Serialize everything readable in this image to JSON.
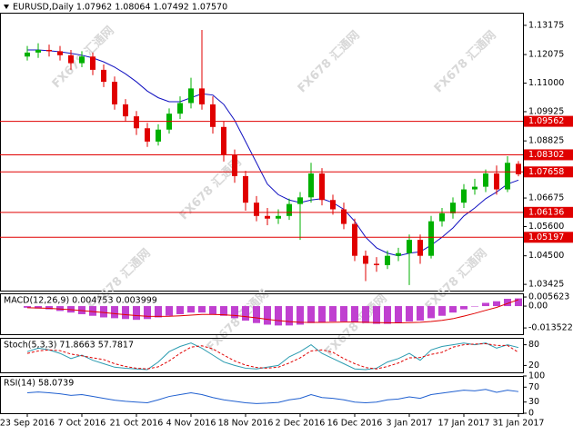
{
  "chart_data": [
    {
      "type": "candlestick",
      "title": "EURUSD,Daily  1.07962 1.08064 1.07492 1.07570",
      "watermark": "FX678 汇通网",
      "categories": [
        "23 Sep 2016",
        null,
        null,
        null,
        null,
        "7 Oct 2016",
        null,
        null,
        null,
        null,
        "21 Oct 2016",
        null,
        null,
        null,
        null,
        "4 Nov 2016",
        null,
        null,
        null,
        null,
        "18 Nov 2016",
        null,
        null,
        null,
        null,
        "2 Dec 2016",
        null,
        null,
        null,
        null,
        "16 Dec 2016",
        null,
        null,
        null,
        null,
        "3 Jan 2017",
        null,
        null,
        null,
        null,
        "17 Jan 2017",
        null,
        null,
        null,
        null,
        "31 Jan 2017"
      ],
      "up_color": "#00b000",
      "down_color": "#e00000",
      "candles": [
        {
          "o": 1.12,
          "h": 1.124,
          "l": 1.1185,
          "c": 1.1215
        },
        {
          "o": 1.1215,
          "h": 1.125,
          "l": 1.1195,
          "c": 1.1225
        },
        {
          "o": 1.1225,
          "h": 1.1245,
          "l": 1.12,
          "c": 1.122
        },
        {
          "o": 1.122,
          "h": 1.124,
          "l": 1.1185,
          "c": 1.1205
        },
        {
          "o": 1.1205,
          "h": 1.1225,
          "l": 1.115,
          "c": 1.1175
        },
        {
          "o": 1.1175,
          "h": 1.122,
          "l": 1.116,
          "c": 1.12
        },
        {
          "o": 1.12,
          "h": 1.1215,
          "l": 1.113,
          "c": 1.115
        },
        {
          "o": 1.115,
          "h": 1.117,
          "l": 1.1085,
          "c": 1.1105
        },
        {
          "o": 1.1105,
          "h": 1.1125,
          "l": 1.1,
          "c": 1.102
        },
        {
          "o": 1.102,
          "h": 1.104,
          "l": 1.0955,
          "c": 1.0975
        },
        {
          "o": 1.0975,
          "h": 1.0995,
          "l": 1.0905,
          "c": 1.093
        },
        {
          "o": 1.093,
          "h": 1.095,
          "l": 1.086,
          "c": 1.088
        },
        {
          "o": 1.088,
          "h": 1.0945,
          "l": 1.0865,
          "c": 1.0925
        },
        {
          "o": 1.0925,
          "h": 1.1005,
          "l": 1.091,
          "c": 1.0985
        },
        {
          "o": 1.0985,
          "h": 1.105,
          "l": 1.0965,
          "c": 1.1025
        },
        {
          "o": 1.1025,
          "h": 1.112,
          "l": 1.1005,
          "c": 1.108
        },
        {
          "o": 1.108,
          "h": 1.13,
          "l": 1.1,
          "c": 1.102
        },
        {
          "o": 1.102,
          "h": 1.105,
          "l": 1.091,
          "c": 1.0935
        },
        {
          "o": 1.0935,
          "h": 1.0955,
          "l": 1.0805,
          "c": 1.083
        },
        {
          "o": 1.083,
          "h": 1.085,
          "l": 1.0725,
          "c": 1.075
        },
        {
          "o": 1.075,
          "h": 1.077,
          "l": 1.062,
          "c": 1.065
        },
        {
          "o": 1.065,
          "h": 1.0675,
          "l": 1.058,
          "c": 1.06
        },
        {
          "o": 1.06,
          "h": 1.063,
          "l": 1.0565,
          "c": 1.059
        },
        {
          "o": 1.059,
          "h": 1.0625,
          "l": 1.057,
          "c": 1.06
        },
        {
          "o": 1.06,
          "h": 1.0665,
          "l": 1.0585,
          "c": 1.0645
        },
        {
          "o": 1.0645,
          "h": 1.069,
          "l": 1.051,
          "c": 1.067
        },
        {
          "o": 1.067,
          "h": 1.08,
          "l": 1.065,
          "c": 1.076
        },
        {
          "o": 1.076,
          "h": 1.078,
          "l": 1.064,
          "c": 1.066
        },
        {
          "o": 1.066,
          "h": 1.068,
          "l": 1.0605,
          "c": 1.0625
        },
        {
          "o": 1.0625,
          "h": 1.065,
          "l": 1.055,
          "c": 1.057
        },
        {
          "o": 1.057,
          "h": 1.059,
          "l": 1.043,
          "c": 1.045
        },
        {
          "o": 1.045,
          "h": 1.047,
          "l": 1.0355,
          "c": 1.042
        },
        {
          "o": 1.042,
          "h": 1.0445,
          "l": 1.039,
          "c": 1.0415
        },
        {
          "o": 1.0415,
          "h": 1.047,
          "l": 1.04,
          "c": 1.045
        },
        {
          "o": 1.045,
          "h": 1.048,
          "l": 1.043,
          "c": 1.046
        },
        {
          "o": 1.046,
          "h": 1.053,
          "l": 1.034,
          "c": 1.051
        },
        {
          "o": 1.051,
          "h": 1.053,
          "l": 1.042,
          "c": 1.045
        },
        {
          "o": 1.045,
          "h": 1.06,
          "l": 1.044,
          "c": 1.058
        },
        {
          "o": 1.058,
          "h": 1.063,
          "l": 1.056,
          "c": 1.061
        },
        {
          "o": 1.061,
          "h": 1.067,
          "l": 1.059,
          "c": 1.065
        },
        {
          "o": 1.065,
          "h": 1.072,
          "l": 1.063,
          "c": 1.07
        },
        {
          "o": 1.07,
          "h": 1.074,
          "l": 1.068,
          "c": 1.071
        },
        {
          "o": 1.071,
          "h": 1.0775,
          "l": 1.069,
          "c": 1.076
        },
        {
          "o": 1.076,
          "h": 1.079,
          "l": 1.068,
          "c": 1.07
        },
        {
          "o": 1.07,
          "h": 1.0825,
          "l": 1.069,
          "c": 1.08
        },
        {
          "o": 1.07962,
          "h": 1.08064,
          "l": 1.07492,
          "c": 1.0757
        }
      ],
      "overlays": [
        {
          "color": "#1010c0",
          "values": [
            1.1225,
            1.1225,
            1.1222,
            1.1218,
            1.1212,
            1.1205,
            1.1195,
            1.118,
            1.116,
            1.1135,
            1.1105,
            1.107,
            1.1045,
            1.103,
            1.103,
            1.1045,
            1.106,
            1.1055,
            1.102,
            1.096,
            1.088,
            1.08,
            1.072,
            1.068,
            1.066,
            1.065,
            1.066,
            1.0665,
            1.065,
            1.0625,
            1.058,
            1.052,
            1.048,
            1.046,
            1.045,
            1.046,
            1.0465,
            1.049,
            1.052,
            1.0555,
            1.06,
            1.063,
            1.0665,
            1.069,
            1.072,
            1.0735
          ]
        }
      ],
      "levels": {
        "color": "#e00000",
        "values": [
          1.09562,
          1.08302,
          1.07658,
          1.06136,
          1.05197
        ]
      },
      "ylim": [
        1.0319,
        1.1365
      ],
      "yticks": [
        1.13175,
        1.12075,
        {
          "value": 1.11,
          "label": "1.11000"
        },
        1.09925,
        1.08825,
        1.06675,
        {
          "value": 1.056,
          "label": "1.05600"
        },
        {
          "value": 1.045,
          "label": "1.04500"
        },
        1.03425
      ]
    },
    {
      "type": "macd",
      "title": "MACD(12,26,9) 0.004753 0.003999",
      "ylim": [
        -0.0174,
        0.0079
      ],
      "yticks": [
        0.005623,
        {
          "value": 0,
          "label": "0.00"
        },
        -0.013522
      ],
      "series": [
        {
          "style": "bar",
          "color": "#c040d0",
          "values": [
            -0.001,
            -0.0015,
            -0.002,
            -0.003,
            -0.004,
            -0.005,
            -0.006,
            -0.007,
            -0.0075,
            -0.008,
            -0.0085,
            -0.008,
            -0.007,
            -0.006,
            -0.005,
            -0.004,
            -0.004,
            -0.005,
            -0.006,
            -0.0075,
            -0.009,
            -0.0105,
            -0.0115,
            -0.012,
            -0.012,
            -0.0115,
            -0.0105,
            -0.01,
            -0.0095,
            -0.0095,
            -0.01,
            -0.0105,
            -0.011,
            -0.011,
            -0.0105,
            -0.0095,
            -0.009,
            -0.0075,
            -0.006,
            -0.004,
            -0.002,
            0.0,
            0.002,
            0.003,
            0.0045,
            0.004753
          ]
        },
        {
          "style": "line",
          "color": "#e00000",
          "values": [
            -0.001,
            -0.0012,
            -0.0014,
            -0.0018,
            -0.0022,
            -0.0028,
            -0.0034,
            -0.004,
            -0.0047,
            -0.0053,
            -0.0059,
            -0.0063,
            -0.0064,
            -0.0063,
            -0.006,
            -0.0056,
            -0.0052,
            -0.0052,
            -0.0054,
            -0.0058,
            -0.0065,
            -0.0073,
            -0.0082,
            -0.009,
            -0.0096,
            -0.01,
            -0.0101,
            -0.0101,
            -0.01,
            -0.0099,
            -0.0099,
            -0.01,
            -0.0102,
            -0.0103,
            -0.0104,
            -0.0102,
            -0.01,
            -0.0095,
            -0.0088,
            -0.0078,
            -0.0062,
            -0.0045,
            -0.0026,
            -0.0008,
            0.0016,
            0.003999
          ]
        }
      ]
    },
    {
      "type": "line",
      "title": "Stoch(5,3,3) 71.8663 57.7817",
      "ylim": [
        0,
        100
      ],
      "yticks": [
        80,
        20
      ],
      "series": [
        {
          "style": "line",
          "color": "#2a9bb0",
          "values": [
            60,
            70,
            65,
            55,
            40,
            50,
            35,
            25,
            15,
            12,
            10,
            8,
            30,
            60,
            75,
            85,
            70,
            50,
            30,
            20,
            12,
            10,
            15,
            20,
            45,
            60,
            80,
            55,
            40,
            25,
            10,
            8,
            12,
            30,
            40,
            55,
            35,
            65,
            75,
            80,
            85,
            80,
            85,
            70,
            80,
            71.8663
          ]
        },
        {
          "style": "dash",
          "color": "#e00000",
          "values": [
            55,
            62,
            65,
            63,
            53,
            48,
            42,
            37,
            25,
            17,
            12,
            10,
            16,
            33,
            55,
            73,
            77,
            68,
            50,
            33,
            21,
            14,
            12,
            15,
            27,
            42,
            62,
            65,
            58,
            40,
            25,
            14,
            10,
            17,
            27,
            42,
            43,
            52,
            58,
            73,
            80,
            82,
            83,
            78,
            78,
            57.7817
          ]
        }
      ]
    },
    {
      "type": "line",
      "title": "RSI(14) 58.0739",
      "ylim": [
        0,
        100
      ],
      "yticks": [
        100,
        70,
        30,
        0
      ],
      "series": [
        {
          "style": "line",
          "color": "#2060d0",
          "values": [
            55,
            57,
            55,
            52,
            48,
            50,
            45,
            40,
            35,
            32,
            30,
            28,
            36,
            45,
            50,
            55,
            50,
            42,
            36,
            32,
            28,
            26,
            27,
            29,
            36,
            40,
            50,
            42,
            40,
            36,
            30,
            28,
            30,
            36,
            38,
            44,
            40,
            50,
            54,
            58,
            62,
            60,
            64,
            56,
            62,
            58.0739
          ]
        }
      ]
    }
  ]
}
